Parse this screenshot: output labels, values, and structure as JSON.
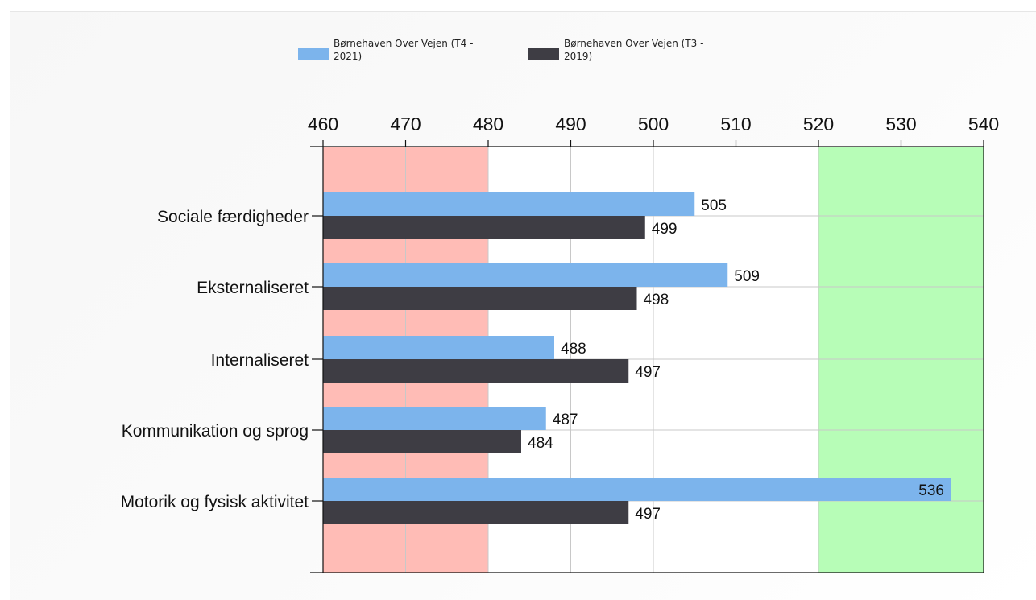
{
  "chart_data": {
    "type": "bar",
    "orientation": "horizontal",
    "title": "",
    "xlabel": "",
    "ylabel": "",
    "xlim": [
      460,
      540
    ],
    "x_ticks": [
      "460",
      "470",
      "480",
      "490",
      "500",
      "510",
      "520",
      "530",
      "540"
    ],
    "categories": [
      "Sociale færdigheder",
      "Eksternaliseret",
      "Internaliseret",
      "Kommunikation og sprog",
      "Motorik og fysisk aktivitet"
    ],
    "series": [
      {
        "name": "Børnehaven Over Vejen (T4 - 2021)",
        "color": "#7cb4ec",
        "values": [
          505,
          509,
          488,
          487,
          536
        ]
      },
      {
        "name": "Børnehaven Over Vejen (T3 - 2019)",
        "color": "#3e3d44",
        "values": [
          499,
          498,
          497,
          484,
          497
        ]
      }
    ],
    "bands": [
      {
        "from": 460,
        "to": 480,
        "color": "#ffbcb6"
      },
      {
        "from": 520,
        "to": 540,
        "color": "#b7fdb7"
      }
    ],
    "grid": true,
    "legend_position": "top"
  }
}
